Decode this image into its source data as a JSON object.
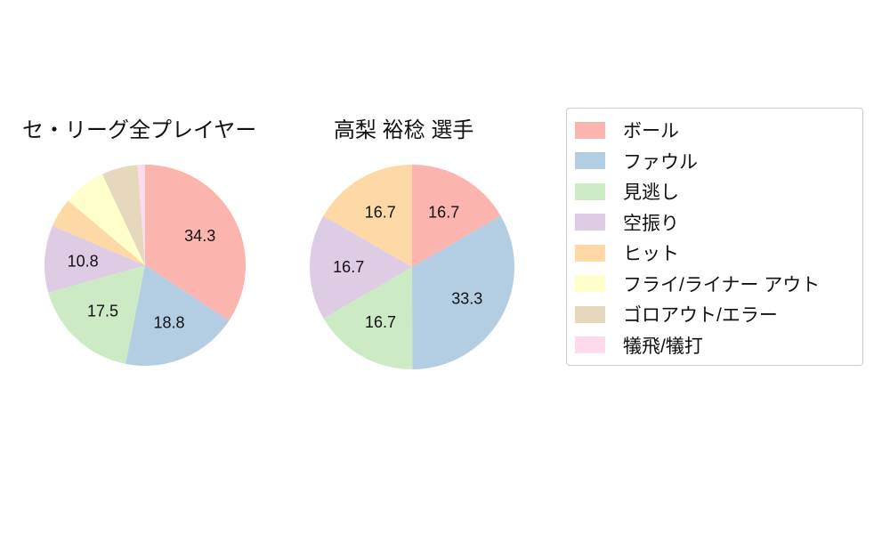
{
  "figure": {
    "background": "#ffffff",
    "text_color": "#111111"
  },
  "chart_data": [
    {
      "type": "pie",
      "title": "セ・リーグ全プレイヤー",
      "start_angle_deg": 0,
      "direction": "clockwise",
      "slices": [
        {
          "label": "ボール",
          "value": 34.3,
          "color": "#fbb4ae",
          "pct_label_shown": true
        },
        {
          "label": "ファウル",
          "value": 18.8,
          "color": "#b3cde3",
          "pct_label_shown": true
        },
        {
          "label": "見逃し",
          "value": 17.5,
          "color": "#ccebc5",
          "pct_label_shown": true
        },
        {
          "label": "空振り",
          "value": 10.8,
          "color": "#decbe4",
          "pct_label_shown": true
        },
        {
          "label": "ヒット",
          "value": 4.7,
          "color": "#fed9a6",
          "pct_label_shown": false
        },
        {
          "label": "フライ/ライナー アウト",
          "value": 6.9,
          "color": "#ffffcc",
          "pct_label_shown": false
        },
        {
          "label": "ゴロアウト/エラー",
          "value": 5.8,
          "color": "#e5d8bd",
          "pct_label_shown": false
        },
        {
          "label": "犠飛/犠打",
          "value": 1.2,
          "color": "#fddaec",
          "pct_label_shown": false
        }
      ]
    },
    {
      "type": "pie",
      "title": "高梨 裕稔 選手",
      "start_angle_deg": 0,
      "direction": "clockwise",
      "slices": [
        {
          "label": "ボール",
          "value": 16.7,
          "color": "#fbb4ae",
          "pct_label_shown": true
        },
        {
          "label": "ファウル",
          "value": 33.3,
          "color": "#b3cde3",
          "pct_label_shown": true
        },
        {
          "label": "見逃し",
          "value": 16.7,
          "color": "#ccebc5",
          "pct_label_shown": true
        },
        {
          "label": "空振り",
          "value": 16.7,
          "color": "#decbe4",
          "pct_label_shown": true
        },
        {
          "label": "ヒット",
          "value": 16.7,
          "color": "#fed9a6",
          "pct_label_shown": true
        }
      ]
    }
  ],
  "legend": {
    "position": "right",
    "border_color": "#cccccc",
    "items": [
      {
        "label": "ボール",
        "color": "#fbb4ae"
      },
      {
        "label": "ファウル",
        "color": "#b3cde3"
      },
      {
        "label": "見逃し",
        "color": "#ccebc5"
      },
      {
        "label": "空振り",
        "color": "#decbe4"
      },
      {
        "label": "ヒット",
        "color": "#fed9a6"
      },
      {
        "label": "フライ/ライナー アウト",
        "color": "#ffffcc"
      },
      {
        "label": "ゴロアウト/エラー",
        "color": "#e5d8bd"
      },
      {
        "label": "犠飛/犠打",
        "color": "#fddaec"
      }
    ]
  }
}
